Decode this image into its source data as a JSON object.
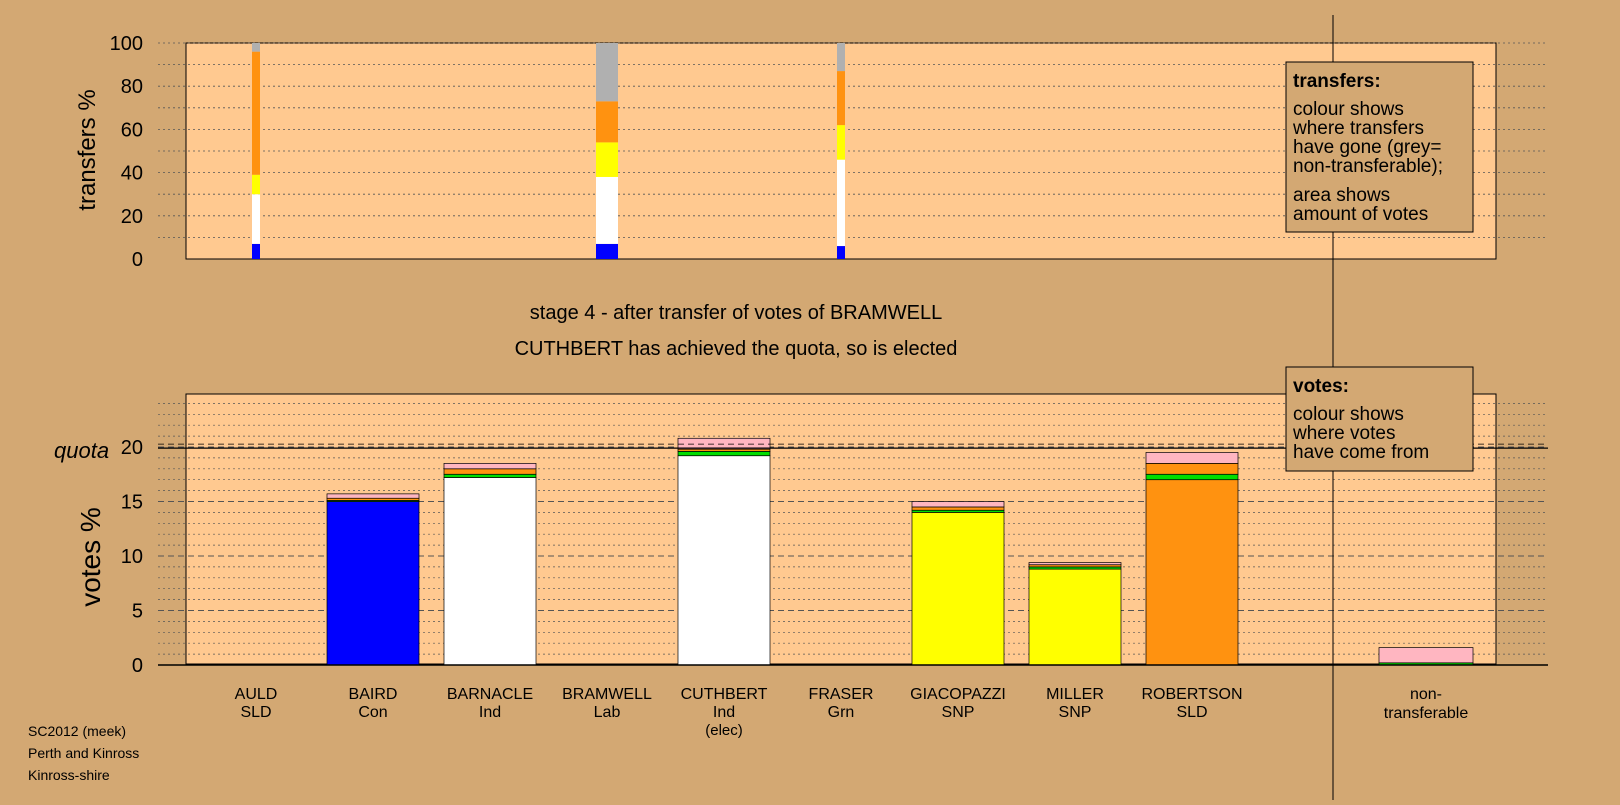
{
  "colors": {
    "background": "#d3a873",
    "plot_area": "#ffc990",
    "Con": "#0000ff",
    "Ind": "#ffffff",
    "SNP": "#ffff00",
    "SLD": "#ff9210",
    "Lab": "#ff0000",
    "Grn": "#00dd00",
    "non_transferable": "#b0b0b0",
    "transfer_received": "#ffb6c1"
  },
  "stage_title": "stage 4 - after transfer of votes of BRAMWELL",
  "stage_subtitle": "CUTHBERT has achieved the quota, so is elected",
  "footer": [
    "SC2012 (meek)",
    "Perth and Kinross",
    "Kinross-shire"
  ],
  "transfers_legend": {
    "title": "transfers:",
    "lines_a": [
      "colour shows",
      "where transfers",
      "have gone (grey=",
      "non-transferable);"
    ],
    "lines_b": [
      "area shows",
      "amount of votes"
    ]
  },
  "votes_legend": {
    "title": "votes:",
    "lines": [
      "colour shows",
      "where votes",
      "have come from"
    ]
  },
  "chart_data": [
    {
      "type": "bar",
      "ylabel": "transfers %",
      "ylim": [
        0,
        100
      ],
      "yticks": [
        0,
        20,
        40,
        60,
        80,
        100
      ],
      "bars": [
        {
          "candidate": "AULD",
          "segments": [
            {
              "party": "Con",
              "value": 7
            },
            {
              "party": "Ind",
              "value": 23
            },
            {
              "party": "SNP",
              "value": 9
            },
            {
              "party": "SLD",
              "value": 57
            },
            {
              "party": "non_transferable",
              "value": 4
            }
          ]
        },
        {
          "candidate": "BRAMWELL",
          "segments": [
            {
              "party": "Con",
              "value": 7
            },
            {
              "party": "Ind",
              "value": 31
            },
            {
              "party": "SNP",
              "value": 16
            },
            {
              "party": "SLD",
              "value": 19
            },
            {
              "party": "non_transferable",
              "value": 27
            }
          ]
        },
        {
          "candidate": "FRASER",
          "segments": [
            {
              "party": "Con",
              "value": 6
            },
            {
              "party": "Ind",
              "value": 40
            },
            {
              "party": "SNP",
              "value": 16
            },
            {
              "party": "SLD",
              "value": 25
            },
            {
              "party": "non_transferable",
              "value": 13
            }
          ]
        }
      ]
    },
    {
      "type": "bar",
      "ylabel": "votes %",
      "quota_label": "quota",
      "quota": 19.9,
      "ylim": [
        0,
        25
      ],
      "yticks": [
        0,
        5,
        10,
        15,
        20
      ],
      "categories": [
        {
          "name": "AULD",
          "party": "SLD"
        },
        {
          "name": "BAIRD",
          "party": "Con"
        },
        {
          "name": "BARNACLE",
          "party": "Ind"
        },
        {
          "name": "BRAMWELL",
          "party": "Lab"
        },
        {
          "name": "CUTHBERT",
          "party": "Ind",
          "note": "(elec)"
        },
        {
          "name": "FRASER",
          "party": "Grn"
        },
        {
          "name": "GIACOPAZZI",
          "party": "SNP"
        },
        {
          "name": "MILLER",
          "party": "SNP"
        },
        {
          "name": "ROBERTSON",
          "party": "SLD"
        }
      ],
      "nontransferable_label": [
        "non-",
        "transferable"
      ],
      "bars": [
        {
          "candidate": "AULD",
          "segments": []
        },
        {
          "candidate": "BAIRD",
          "segments": [
            {
              "color": "Con",
              "value": 15.0
            },
            {
              "color": "Grn",
              "value": 0.1
            },
            {
              "color": "SLD",
              "value": 0.2
            },
            {
              "color": "transfer_received",
              "value": 0.4
            }
          ]
        },
        {
          "candidate": "BARNACLE",
          "segments": [
            {
              "color": "Ind",
              "value": 17.2
            },
            {
              "color": "Grn",
              "value": 0.3
            },
            {
              "color": "SLD",
              "value": 0.5
            },
            {
              "color": "transfer_received",
              "value": 0.5
            }
          ]
        },
        {
          "candidate": "BRAMWELL",
          "segments": []
        },
        {
          "candidate": "CUTHBERT",
          "segments": [
            {
              "color": "Ind",
              "value": 19.2
            },
            {
              "color": "Grn",
              "value": 0.4
            },
            {
              "color": "SLD",
              "value": 0.2
            },
            {
              "color": "transfer_received",
              "value": 1.0
            }
          ]
        },
        {
          "candidate": "FRASER",
          "segments": []
        },
        {
          "candidate": "GIACOPAZZI",
          "segments": [
            {
              "color": "SNP",
              "value": 14.0
            },
            {
              "color": "Grn",
              "value": 0.2
            },
            {
              "color": "SLD",
              "value": 0.3
            },
            {
              "color": "transfer_received",
              "value": 0.5
            }
          ]
        },
        {
          "candidate": "MILLER",
          "segments": [
            {
              "color": "SNP",
              "value": 8.8
            },
            {
              "color": "Grn",
              "value": 0.2
            },
            {
              "color": "SLD",
              "value": 0.2
            },
            {
              "color": "transfer_received",
              "value": 0.2
            }
          ]
        },
        {
          "candidate": "ROBERTSON",
          "segments": [
            {
              "color": "SLD",
              "value": 17.0
            },
            {
              "color": "Grn",
              "value": 0.5
            },
            {
              "color": "SLD",
              "value": 1.0
            },
            {
              "color": "transfer_received",
              "value": 1.0
            }
          ]
        },
        {
          "candidate": "non-transferable",
          "segments": [
            {
              "color": "Grn",
              "value": 0.2
            },
            {
              "color": "transfer_received",
              "value": 1.4
            }
          ]
        }
      ]
    }
  ]
}
